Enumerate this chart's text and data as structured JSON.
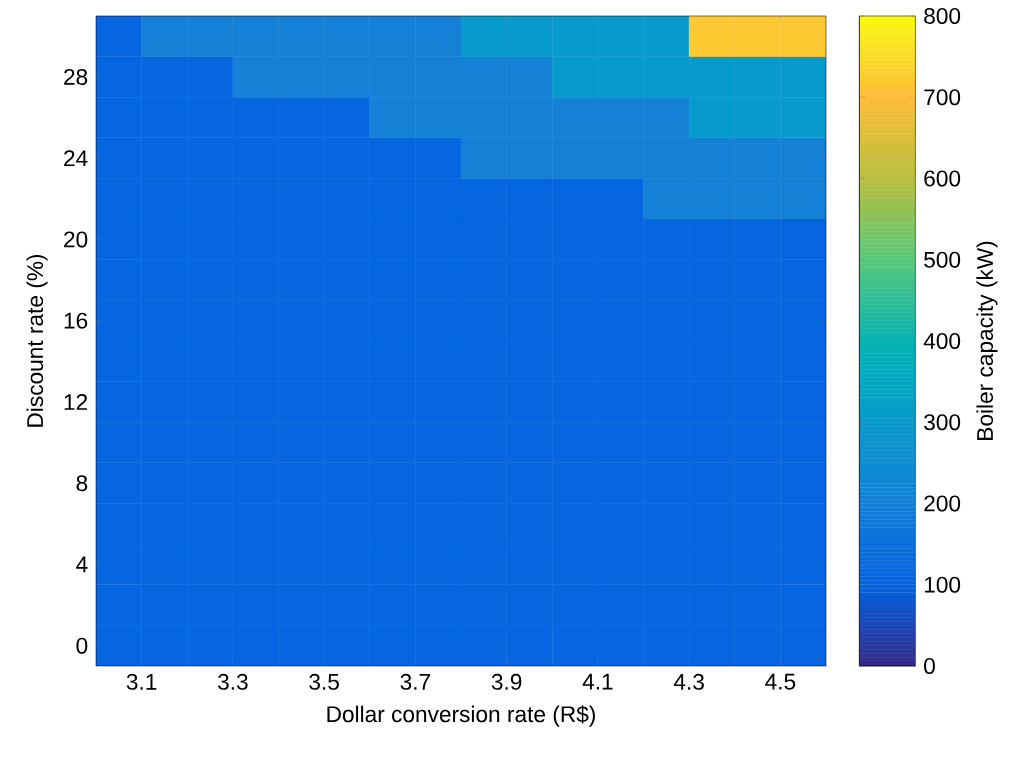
{
  "chart_data": {
    "type": "heatmap",
    "xlabel": "Dollar conversion rate (R$)",
    "ylabel": "Discount rate (%)",
    "clabel": "Boiler capacity (kW)",
    "x": [
      3.05,
      3.15,
      3.25,
      3.35,
      3.45,
      3.55,
      3.65,
      3.75,
      3.85,
      3.95,
      4.05,
      4.15,
      4.25,
      4.35,
      4.45,
      4.55
    ],
    "y": [
      30,
      28,
      26,
      24,
      22,
      20,
      18,
      16,
      14,
      12,
      10,
      8,
      6,
      4,
      2,
      0
    ],
    "cells": [
      [
        110,
        200,
        200,
        200,
        200,
        200,
        200,
        200,
        300,
        300,
        300,
        300,
        300,
        720,
        720,
        720
      ],
      [
        110,
        110,
        110,
        200,
        200,
        200,
        200,
        200,
        200,
        200,
        300,
        300,
        300,
        300,
        300,
        300
      ],
      [
        110,
        110,
        110,
        110,
        110,
        110,
        200,
        200,
        200,
        200,
        200,
        200,
        200,
        300,
        300,
        300
      ],
      [
        110,
        110,
        110,
        110,
        110,
        110,
        110,
        110,
        200,
        200,
        200,
        200,
        200,
        200,
        200,
        200
      ],
      [
        110,
        110,
        110,
        110,
        110,
        110,
        110,
        110,
        110,
        110,
        110,
        110,
        200,
        200,
        200,
        200
      ],
      [
        110,
        110,
        110,
        110,
        110,
        110,
        110,
        110,
        110,
        110,
        110,
        110,
        110,
        110,
        110,
        110
      ],
      [
        110,
        110,
        110,
        110,
        110,
        110,
        110,
        110,
        110,
        110,
        110,
        110,
        110,
        110,
        110,
        110
      ],
      [
        110,
        110,
        110,
        110,
        110,
        110,
        110,
        110,
        110,
        110,
        110,
        110,
        110,
        110,
        110,
        110
      ],
      [
        110,
        110,
        110,
        110,
        110,
        110,
        110,
        110,
        110,
        110,
        110,
        110,
        110,
        110,
        110,
        110
      ],
      [
        110,
        110,
        110,
        110,
        110,
        110,
        110,
        110,
        110,
        110,
        110,
        110,
        110,
        110,
        110,
        110
      ],
      [
        110,
        110,
        110,
        110,
        110,
        110,
        110,
        110,
        110,
        110,
        110,
        110,
        110,
        110,
        110,
        110
      ],
      [
        110,
        110,
        110,
        110,
        110,
        110,
        110,
        110,
        110,
        110,
        110,
        110,
        110,
        110,
        110,
        110
      ],
      [
        110,
        110,
        110,
        110,
        110,
        110,
        110,
        110,
        110,
        110,
        110,
        110,
        110,
        110,
        110,
        110
      ],
      [
        110,
        110,
        110,
        110,
        110,
        110,
        110,
        110,
        110,
        110,
        110,
        110,
        110,
        110,
        110,
        110
      ],
      [
        110,
        110,
        110,
        110,
        110,
        110,
        110,
        110,
        110,
        110,
        110,
        110,
        110,
        110,
        110,
        110
      ],
      [
        110,
        110,
        110,
        110,
        110,
        110,
        110,
        110,
        110,
        110,
        110,
        110,
        110,
        110,
        110,
        110
      ]
    ],
    "clim": [
      0,
      800
    ],
    "cticks": [
      0,
      100,
      200,
      300,
      400,
      500,
      600,
      700,
      800
    ],
    "xlim": [
      3.0,
      4.6
    ],
    "ylim": [
      -1,
      31
    ],
    "xticks": [
      3.1,
      3.3,
      3.5,
      3.7,
      3.9,
      4.1,
      4.3,
      4.5
    ],
    "yticks": [
      0,
      4,
      8,
      12,
      16,
      20,
      24,
      28
    ]
  }
}
